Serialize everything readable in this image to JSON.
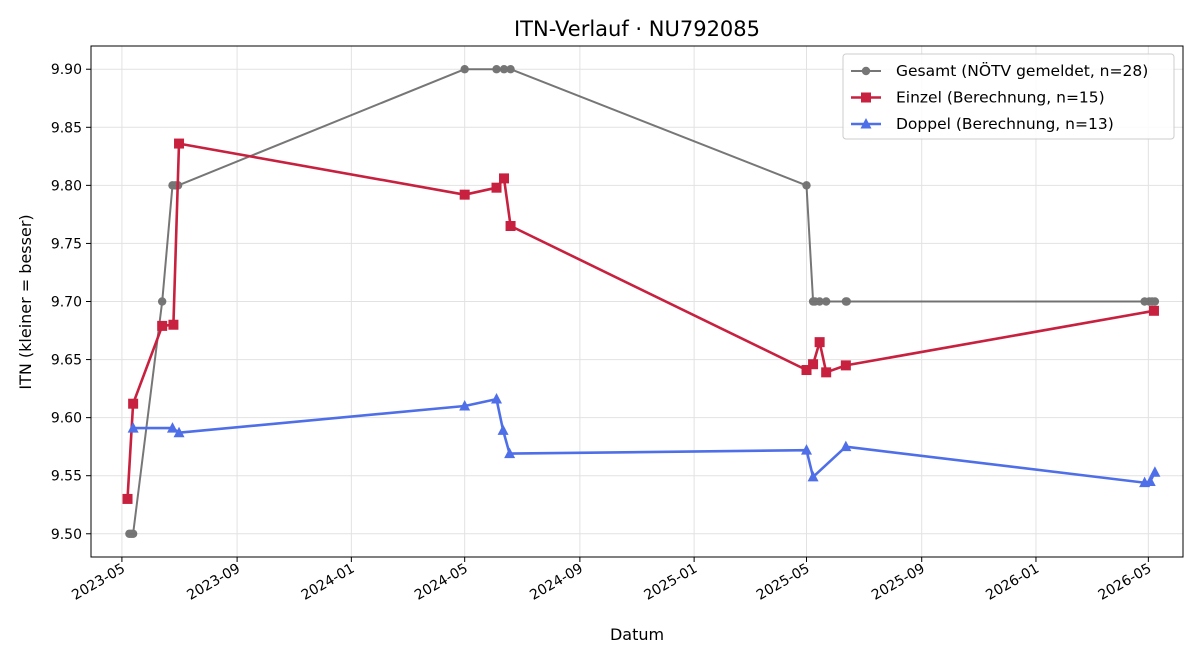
{
  "chart_data": {
    "type": "line",
    "title": "ITN-Verlauf · NU792085",
    "xlabel": "Datum",
    "ylabel": "ITN  (kleiner = besser)",
    "x_is_date": true,
    "xlim": [
      "2023-03-29",
      "2026-06-07"
    ],
    "ylim": [
      9.48,
      9.92
    ],
    "xticks": [
      "2023-05",
      "2023-09",
      "2024-01",
      "2024-05",
      "2024-09",
      "2025-01",
      "2025-05",
      "2025-09",
      "2026-01",
      "2026-05"
    ],
    "yticks": [
      9.5,
      9.55,
      9.6,
      9.65,
      9.7,
      9.75,
      9.8,
      9.85,
      9.9
    ],
    "ytick_labels": [
      "9.50",
      "9.55",
      "9.60",
      "9.65",
      "9.70",
      "9.75",
      "9.80",
      "9.85",
      "9.90"
    ],
    "grid": true,
    "legend_position": "top-right",
    "series": [
      {
        "name": "Gesamt (NÖTV gemeldet, n=28)",
        "color": "#555555",
        "marker": "circle",
        "opacity": 0.8,
        "points": [
          [
            "2023-05-09",
            9.5
          ],
          [
            "2023-05-11",
            9.5
          ],
          [
            "2023-05-13",
            9.5
          ],
          [
            "2023-06-13",
            9.7
          ],
          [
            "2023-06-24",
            9.8
          ],
          [
            "2023-06-27",
            9.8
          ],
          [
            "2023-06-30",
            9.8
          ],
          [
            "2024-05-01",
            9.9
          ],
          [
            "2024-06-04",
            9.9
          ],
          [
            "2024-06-12",
            9.9
          ],
          [
            "2024-06-19",
            9.9
          ],
          [
            "2025-05-01",
            9.8
          ],
          [
            "2025-05-08",
            9.7
          ],
          [
            "2025-05-10",
            9.7
          ],
          [
            "2025-05-15",
            9.7
          ],
          [
            "2025-05-22",
            9.7
          ],
          [
            "2025-06-12",
            9.7
          ],
          [
            "2025-06-13",
            9.7
          ],
          [
            "2026-04-27",
            9.7
          ],
          [
            "2026-05-02",
            9.7
          ],
          [
            "2026-05-05",
            9.7
          ],
          [
            "2026-05-08",
            9.7
          ]
        ]
      },
      {
        "name": "Einzel (Berechnung, n=15)",
        "color": "#C8203F",
        "marker": "square",
        "opacity": 1,
        "points": [
          [
            "2023-05-07",
            9.53
          ],
          [
            "2023-05-13",
            9.612
          ],
          [
            "2023-06-13",
            9.679
          ],
          [
            "2023-06-25",
            9.68
          ],
          [
            "2023-07-01",
            9.836
          ],
          [
            "2024-05-01",
            9.792
          ],
          [
            "2024-06-04",
            9.798
          ],
          [
            "2024-06-12",
            9.806
          ],
          [
            "2024-06-19",
            9.765
          ],
          [
            "2025-05-01",
            9.641
          ],
          [
            "2025-05-08",
            9.646
          ],
          [
            "2025-05-15",
            9.665
          ],
          [
            "2025-05-22",
            9.639
          ],
          [
            "2025-06-12",
            9.645
          ],
          [
            "2026-05-07",
            9.692
          ]
        ]
      },
      {
        "name": "Doppel (Berechnung, n=13)",
        "color": "#4F6FE8",
        "marker": "triangle",
        "opacity": 1,
        "points": [
          [
            "2023-05-13",
            9.591
          ],
          [
            "2023-06-24",
            9.591
          ],
          [
            "2023-07-01",
            9.587
          ],
          [
            "2024-05-01",
            9.61
          ],
          [
            "2024-06-04",
            9.616
          ],
          [
            "2024-06-11",
            9.589
          ],
          [
            "2024-06-18",
            9.569
          ],
          [
            "2025-05-01",
            9.572
          ],
          [
            "2025-05-08",
            9.549
          ],
          [
            "2025-06-12",
            9.575
          ],
          [
            "2026-04-27",
            9.544
          ],
          [
            "2026-05-03",
            9.545
          ],
          [
            "2026-05-08",
            9.553
          ]
        ]
      }
    ]
  }
}
